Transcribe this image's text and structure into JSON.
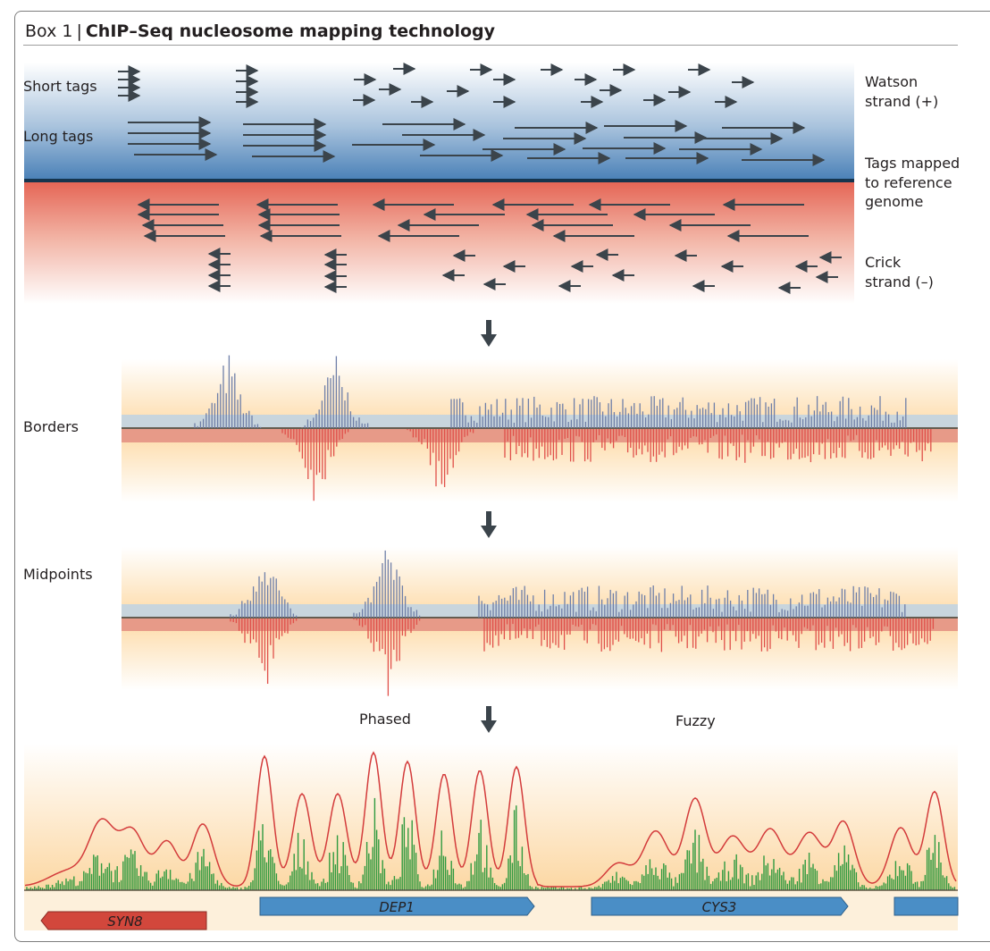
{
  "box": {
    "label": "Box 1",
    "separator": "|",
    "title": "ChIP–Seq nucleosome mapping technology"
  },
  "labels": {
    "short_tags": "Short tags",
    "long_tags": "Long tags",
    "watson_line1": "Watson",
    "watson_line2": "strand (+)",
    "mapped_line1": "Tags mapped",
    "mapped_line2": "to reference",
    "mapped_line3": "genome",
    "crick_line1": "Crick",
    "crick_line2": "strand (–)",
    "borders": "Borders",
    "midpoints": "Midpoints",
    "phased": "Phased",
    "fuzzy": "Fuzzy"
  },
  "genes": [
    {
      "name": "SYN8",
      "strand": "-",
      "color": "#d2473c"
    },
    {
      "name": "DEP1",
      "strand": "+",
      "color": "#4a8ec6"
    },
    {
      "name": "CYS3",
      "strand": "+",
      "color": "#4a8ec6"
    }
  ],
  "colors": {
    "watson_band": "#5b8ec2",
    "crick_band": "#e46a5c",
    "arrow": "#3b444b",
    "blue_bar": "#6f7fa8",
    "red_bar": "#e0504a",
    "panel_bg": "#fcd9a4",
    "green_bar": "#2f9a3f",
    "curve": "#d33b3b"
  }
}
